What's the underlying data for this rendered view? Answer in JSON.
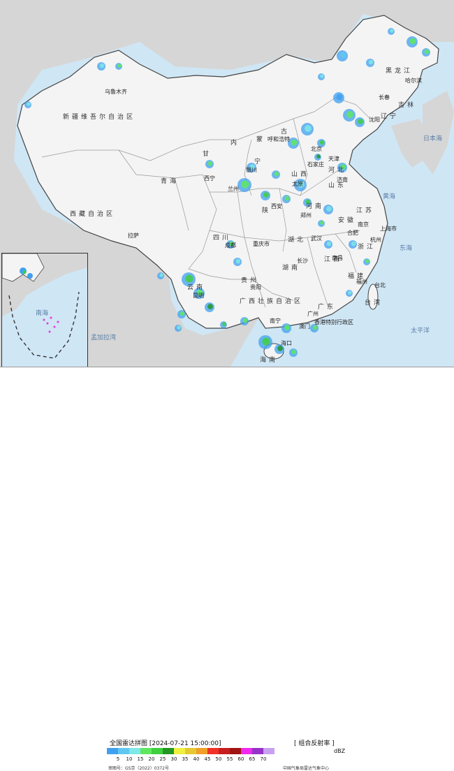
{
  "header": {
    "title": "全国雷达拼图 [2024-07-21 15:00:00]",
    "product": "[ 组合反射率 ]"
  },
  "legend": {
    "unit": "dBZ",
    "ticks": [
      "5",
      "10",
      "15",
      "20",
      "25",
      "30",
      "35",
      "40",
      "45",
      "50",
      "55",
      "60",
      "65",
      "70"
    ],
    "colors": [
      "#3fa0f0",
      "#5fc8f0",
      "#7fe8e8",
      "#5fe85f",
      "#3fcf3f",
      "#239623",
      "#f0f040",
      "#e6c832",
      "#f0a028",
      "#f03228",
      "#c81e1e",
      "#a01414",
      "#f028f0",
      "#9632c8",
      "#c8a0f0"
    ]
  },
  "footer": {
    "approval": "审图号：GS京（2022）0372号",
    "producer": "中国气象局雷达气象中心"
  },
  "labels": {
    "xinjiang": "新疆维吾尔自治区",
    "urumqi": "乌鲁木齐",
    "tibet": "西藏自治区",
    "lhasa": "拉萨",
    "qinghai": "青海",
    "xining": "西宁",
    "gansu": "甘",
    "lanzhou": "兰州",
    "inner_mongolia_a": "内",
    "inner_mongolia_b": "蒙",
    "inner_mongolia_c": "古",
    "hohhot": "呼和浩特",
    "heilongjiang": "黑龙江",
    "harbin": "哈尔滨",
    "jilin": "吉林",
    "changchun": "长春",
    "liaoning": "辽宁",
    "shenyang": "沈阳",
    "beijing": "北京",
    "tianjin": "天津",
    "hebei": "河北",
    "shijiazhuang": "石家庄",
    "shanxi": "山西",
    "taiyuan": "太原",
    "shandong": "山东",
    "jinan": "济南",
    "henan": "河南",
    "zhengzhou": "郑州",
    "shaanxi": "陕",
    "xian": "西安",
    "ningxia": "宁",
    "yinchuan": "银川",
    "sichuan": "四川",
    "chengdu": "成都",
    "chongqing": "重庆市",
    "hubei": "湖北",
    "wuhan": "武汉",
    "anhui": "安徽",
    "hefei": "合肥",
    "jiangsu": "江苏",
    "nanjing": "南京",
    "shanghai": "上海市",
    "zhejiang": "浙江",
    "hangzhou": "杭州",
    "jiangxi": "江西",
    "nanchang": "南昌",
    "hunan": "湖南",
    "changsha": "长沙",
    "guizhou": "贵州",
    "guiyang": "贵阳",
    "yunnan": "云南",
    "kunming": "昆明",
    "guangxi": "广西壮族自治区",
    "nanning": "南宁",
    "guangdong": "广东",
    "guangzhou": "广州",
    "fujian": "福建",
    "fuzhou": "福州",
    "taiwan": "台湾",
    "taibei": "台北",
    "hongkong": "香港特别行政区",
    "macao": "澳门",
    "hainan": "海南",
    "haikou": "海口",
    "yellow_sea": "黄海",
    "east_sea": "东海",
    "japan_sea": "日本海",
    "pacific": "太平洋",
    "bay_of_bengal": "孟加拉湾",
    "south_sea": "南海"
  }
}
